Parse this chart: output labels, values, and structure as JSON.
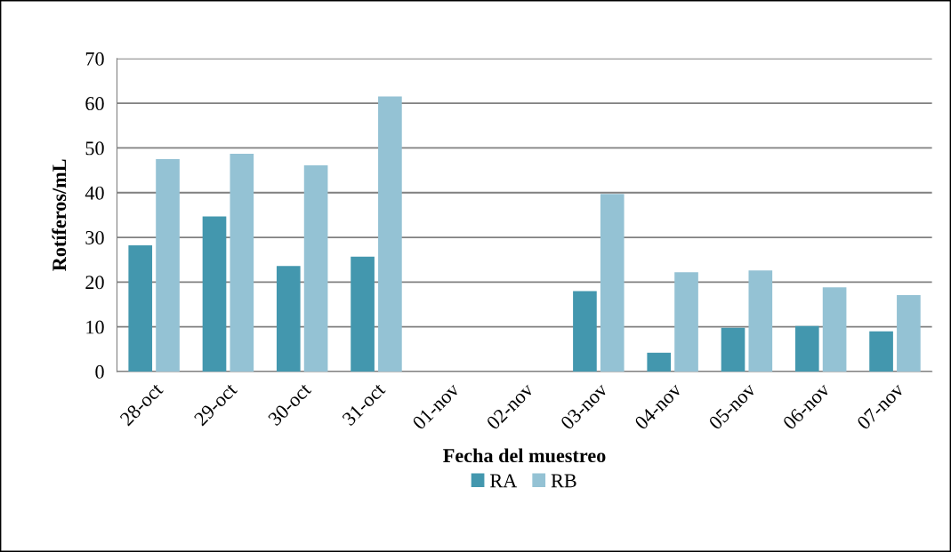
{
  "chart_data": {
    "type": "bar",
    "xlabel": "Fecha del muestreo",
    "ylabel": "Rotíferos/mL",
    "categories": [
      "28-oct",
      "29-oct",
      "30-oct",
      "31-oct",
      "01-nov",
      "02-nov",
      "03-nov",
      "04-nov",
      "05-nov",
      "06-nov",
      "07-nov"
    ],
    "series": [
      {
        "name": "RA",
        "color": "#4397ae",
        "values": [
          28.2,
          34.7,
          23.6,
          25.7,
          null,
          null,
          18,
          4.2,
          9.8,
          10.2,
          9.0
        ]
      },
      {
        "name": "RB",
        "color": "#94c2d4",
        "values": [
          47.5,
          48.7,
          46.1,
          61.5,
          null,
          null,
          39.7,
          22.2,
          22.6,
          18.8,
          17.1
        ]
      }
    ],
    "ylim": [
      0,
      70
    ],
    "yticks": [
      0,
      10,
      20,
      30,
      40,
      50,
      60,
      70
    ],
    "grid": "y",
    "legend": "bottom"
  }
}
